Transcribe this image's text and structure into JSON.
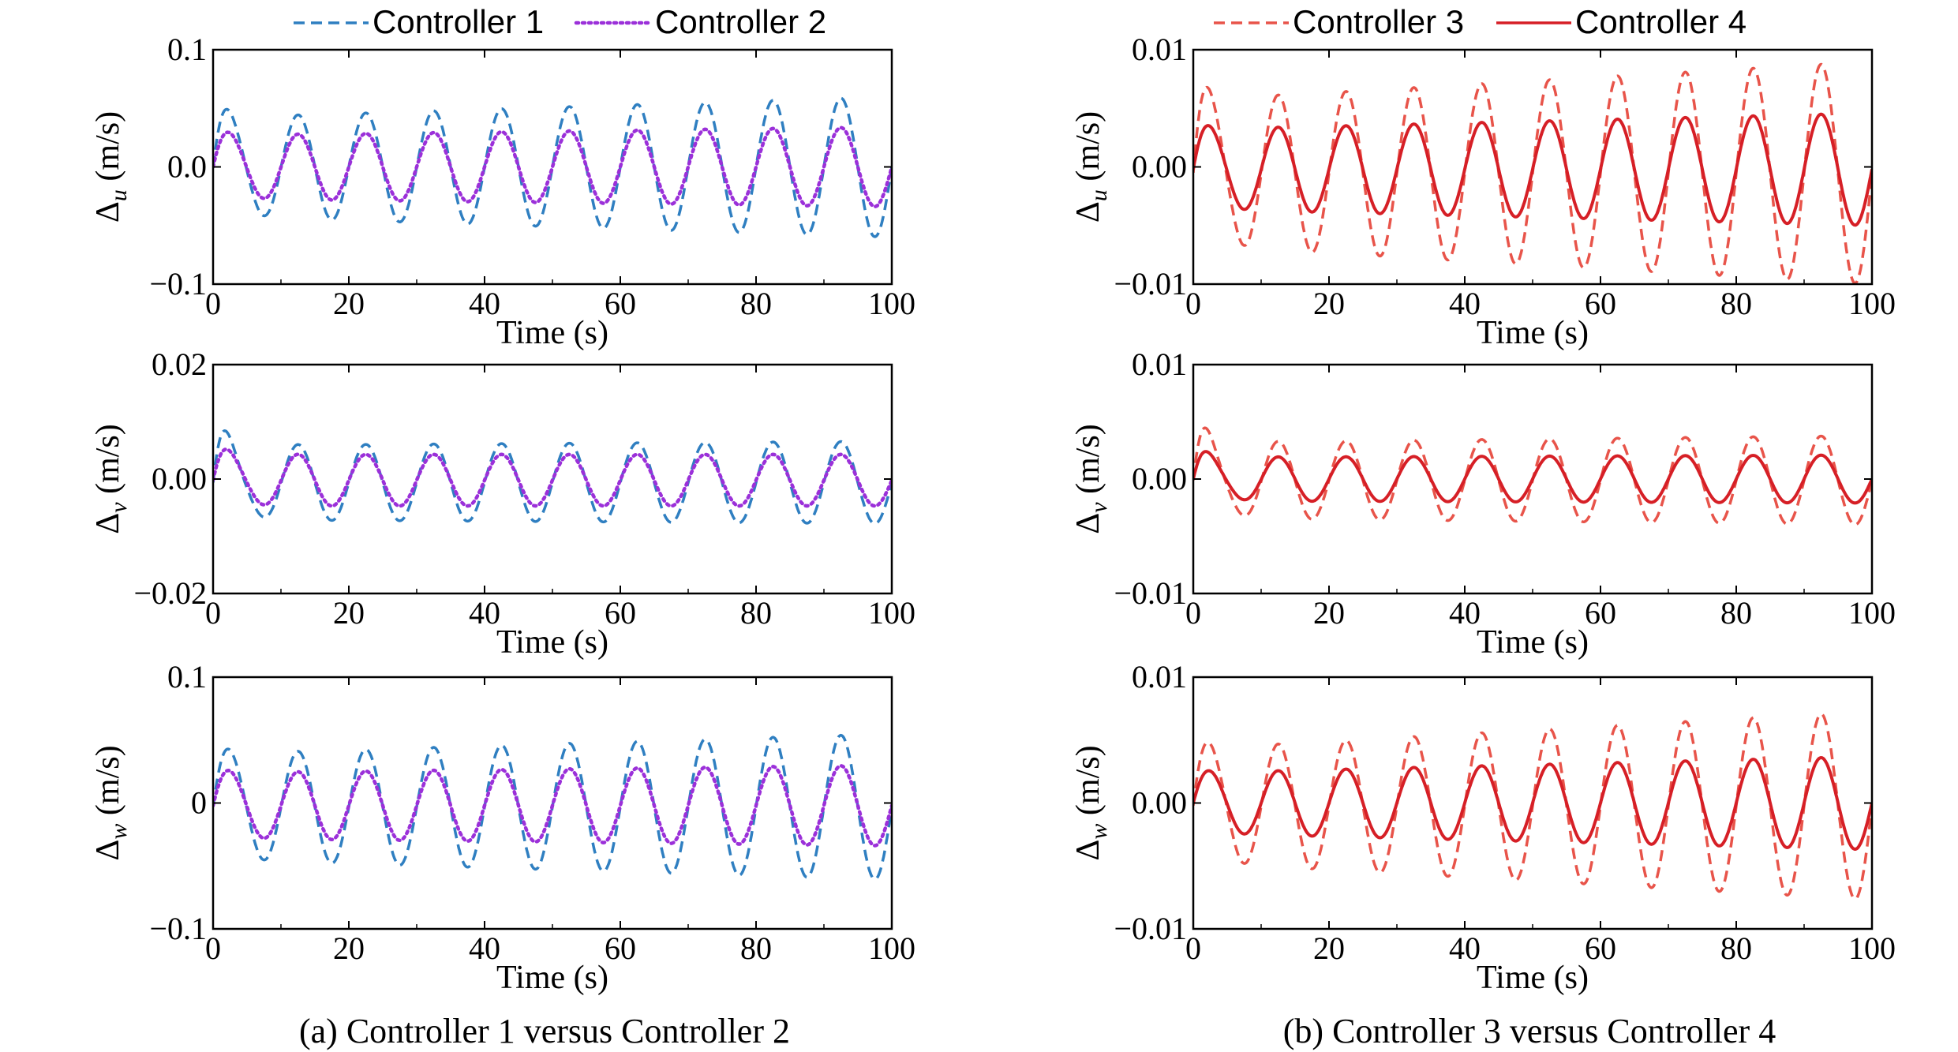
{
  "chart_data": [
    {
      "type": "line",
      "group": "a",
      "row": 0,
      "xlabel": "Time (s)",
      "ylabel_symbol": "Δ",
      "ylabel_sub": "u",
      "ylabel_unit": "(m/s)",
      "xlim": [
        0,
        100
      ],
      "ylim": [
        -0.1,
        0.1
      ],
      "xticks": [
        0,
        20,
        40,
        60,
        80,
        100
      ],
      "xtick_labels": [
        "0",
        "20",
        "40",
        "60",
        "80",
        "100"
      ],
      "yticks": [
        0.1,
        0.0,
        -0.1
      ],
      "ytick_labels": [
        "0.1",
        "0.0",
        "−0.1"
      ],
      "series": [
        {
          "name": "Controller 1",
          "color": "#2f7fc1",
          "style": "dashed",
          "freq": 0.1,
          "phase_offset": 0,
          "amp_start": 0.042,
          "amp_end": 0.06,
          "bias": 0.0,
          "transient_amp": 0.02
        },
        {
          "name": "Controller 2",
          "color": "#9b30d9",
          "style": "dotted",
          "freq": 0.1,
          "phase_offset": 0,
          "amp_start": 0.027,
          "amp_end": 0.034,
          "bias": 0.0,
          "transient_amp": 0.008
        }
      ]
    },
    {
      "type": "line",
      "group": "a",
      "row": 1,
      "xlabel": "Time (s)",
      "ylabel_symbol": "Δ",
      "ylabel_sub": "v",
      "ylabel_unit": "(m/s)",
      "xlim": [
        0,
        100
      ],
      "ylim": [
        -0.02,
        0.02
      ],
      "xticks": [
        0,
        20,
        40,
        60,
        80,
        100
      ],
      "xtick_labels": [
        "0",
        "20",
        "40",
        "60",
        "80",
        "100"
      ],
      "yticks": [
        0.02,
        0.0,
        -0.02
      ],
      "ytick_labels": [
        "0.02",
        "0.00",
        "−0.02"
      ],
      "series": [
        {
          "name": "Controller 1",
          "color": "#2f7fc1",
          "style": "dashed",
          "freq": 0.1,
          "phase_offset": 0,
          "amp_start": 0.0065,
          "amp_end": 0.0072,
          "bias": -0.0006,
          "transient_amp": 0.006
        },
        {
          "name": "Controller 2",
          "color": "#9b30d9",
          "style": "dotted",
          "freq": 0.1,
          "phase_offset": 0,
          "amp_start": 0.0045,
          "amp_end": 0.0045,
          "bias": -0.0002,
          "transient_amp": 0.0025
        }
      ]
    },
    {
      "type": "line",
      "group": "a",
      "row": 2,
      "xlabel": "Time (s)",
      "ylabel_symbol": "Δ",
      "ylabel_sub": "w",
      "ylabel_unit": "(m/s)",
      "xlim": [
        0,
        100
      ],
      "ylim": [
        -0.1,
        0.1
      ],
      "xticks": [
        0,
        20,
        40,
        60,
        80,
        100
      ],
      "xtick_labels": [
        "0",
        "20",
        "40",
        "60",
        "80",
        "100"
      ],
      "yticks": [
        0.1,
        0.0,
        -0.1
      ],
      "ytick_labels": [
        "0.1",
        "0",
        "−0.1"
      ],
      "series": [
        {
          "name": "Controller 1",
          "color": "#2f7fc1",
          "style": "dashed",
          "freq": 0.1,
          "phase_offset": 0,
          "amp_start": 0.042,
          "amp_end": 0.058,
          "bias": -0.003,
          "transient_amp": 0.012
        },
        {
          "name": "Controller 2",
          "color": "#9b30d9",
          "style": "dotted",
          "freq": 0.1,
          "phase_offset": 0,
          "amp_start": 0.026,
          "amp_end": 0.032,
          "bias": -0.002,
          "transient_amp": 0.006
        }
      ]
    },
    {
      "type": "line",
      "group": "b",
      "row": 0,
      "xlabel": "Time (s)",
      "ylabel_symbol": "Δ",
      "ylabel_sub": "u",
      "ylabel_unit": "(m/s)",
      "xlim": [
        0,
        100
      ],
      "ylim": [
        -0.01,
        0.01
      ],
      "xticks": [
        0,
        20,
        40,
        60,
        80,
        100
      ],
      "xtick_labels": [
        "0",
        "20",
        "40",
        "60",
        "80",
        "100"
      ],
      "yticks": [
        0.01,
        0.0,
        -0.01
      ],
      "ytick_labels": [
        "0.01",
        "0.00",
        "−0.01"
      ],
      "series": [
        {
          "name": "Controller 3",
          "color": "#e8544a",
          "style": "dashed",
          "freq": 0.1,
          "phase_offset": 0,
          "amp_start": 0.0062,
          "amp_end": 0.0095,
          "bias": -0.0005,
          "transient_amp": 0.003
        },
        {
          "name": "Controller 4",
          "color": "#d61f26",
          "style": "solid",
          "freq": 0.1,
          "phase_offset": 0,
          "amp_start": 0.0034,
          "amp_end": 0.0048,
          "bias": -0.0002,
          "transient_amp": 0.001
        }
      ]
    },
    {
      "type": "line",
      "group": "b",
      "row": 1,
      "xlabel": "Time (s)",
      "ylabel_symbol": "Δ",
      "ylabel_sub": "v",
      "ylabel_unit": "(m/s)",
      "xlim": [
        0,
        100
      ],
      "ylim": [
        -0.01,
        0.01
      ],
      "xticks": [
        0,
        20,
        40,
        60,
        80,
        100
      ],
      "xtick_labels": [
        "0",
        "20",
        "40",
        "60",
        "80",
        "100"
      ],
      "yticks": [
        0.01,
        0.0,
        -0.01
      ],
      "ytick_labels": [
        "0.01",
        "0.00",
        "−0.01"
      ],
      "series": [
        {
          "name": "Controller 3",
          "color": "#e8544a",
          "style": "dashed",
          "freq": 0.1,
          "phase_offset": 0,
          "amp_start": 0.0033,
          "amp_end": 0.0039,
          "bias": -0.0001,
          "transient_amp": 0.003
        },
        {
          "name": "Controller 4",
          "color": "#d61f26",
          "style": "solid",
          "freq": 0.1,
          "phase_offset": 0,
          "amp_start": 0.0019,
          "amp_end": 0.0021,
          "bias": 0.0,
          "transient_amp": 0.0013
        }
      ]
    },
    {
      "type": "line",
      "group": "b",
      "row": 2,
      "xlabel": "Time (s)",
      "ylabel_symbol": "Δ",
      "ylabel_sub": "w",
      "ylabel_unit": "(m/s)",
      "xlim": [
        0,
        100
      ],
      "ylim": [
        -0.01,
        0.01
      ],
      "xticks": [
        0,
        20,
        40,
        60,
        80,
        100
      ],
      "xtick_labels": [
        "0",
        "20",
        "40",
        "60",
        "80",
        "100"
      ],
      "yticks": [
        0.01,
        0.0,
        -0.01
      ],
      "ytick_labels": [
        "0.01",
        "0.00",
        "−0.01"
      ],
      "series": [
        {
          "name": "Controller 3",
          "color": "#e8544a",
          "style": "dashed",
          "freq": 0.1,
          "phase_offset": 0,
          "amp_start": 0.0045,
          "amp_end": 0.0075,
          "bias": -0.0002,
          "transient_amp": 0.0015
        },
        {
          "name": "Controller 4",
          "color": "#d61f26",
          "style": "solid",
          "freq": 0.1,
          "phase_offset": 0,
          "amp_start": 0.0024,
          "amp_end": 0.0037,
          "bias": 0.0,
          "transient_amp": 0.0005
        }
      ]
    }
  ],
  "legends": {
    "a": [
      {
        "name": "Controller 1",
        "color": "#2f7fc1",
        "style": "dashed"
      },
      {
        "name": "Controller 2",
        "color": "#9b30d9",
        "style": "dotted"
      }
    ],
    "b": [
      {
        "name": "Controller 3",
        "color": "#e8544a",
        "style": "dashed"
      },
      {
        "name": "Controller 4",
        "color": "#d61f26",
        "style": "solid"
      }
    ]
  },
  "captions": {
    "a": "(a) Controller 1 versus Controller 2",
    "b": "(b) Controller 3 versus Controller 4"
  }
}
